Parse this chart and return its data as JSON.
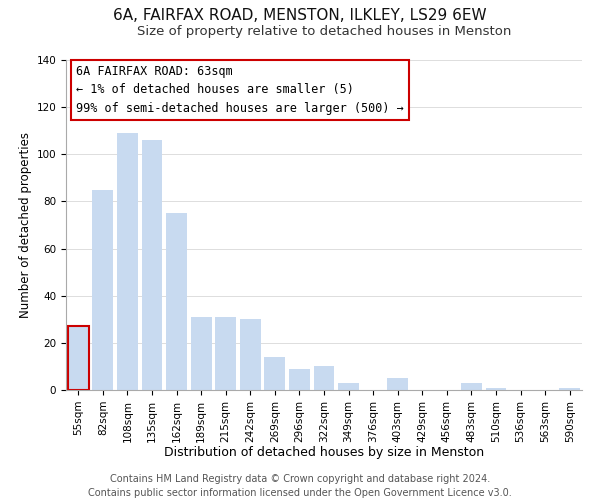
{
  "title": "6A, FAIRFAX ROAD, MENSTON, ILKLEY, LS29 6EW",
  "subtitle": "Size of property relative to detached houses in Menston",
  "xlabel": "Distribution of detached houses by size in Menston",
  "ylabel": "Number of detached properties",
  "categories": [
    "55sqm",
    "82sqm",
    "108sqm",
    "135sqm",
    "162sqm",
    "189sqm",
    "215sqm",
    "242sqm",
    "269sqm",
    "296sqm",
    "322sqm",
    "349sqm",
    "376sqm",
    "403sqm",
    "429sqm",
    "456sqm",
    "483sqm",
    "510sqm",
    "536sqm",
    "563sqm",
    "590sqm"
  ],
  "values": [
    27,
    85,
    109,
    106,
    75,
    31,
    31,
    30,
    14,
    9,
    10,
    3,
    0,
    5,
    0,
    0,
    3,
    1,
    0,
    0,
    1
  ],
  "bar_color": "#c8daf0",
  "highlight_bar_edge_color": "#cc0000",
  "highlight_index": 0,
  "ylim": [
    0,
    140
  ],
  "yticks": [
    0,
    20,
    40,
    60,
    80,
    100,
    120,
    140
  ],
  "annotation_title": "6A FAIRFAX ROAD: 63sqm",
  "annotation_line1": "← 1% of detached houses are smaller (5)",
  "annotation_line2": "99% of semi-detached houses are larger (500) →",
  "annotation_box_color": "#ffffff",
  "annotation_box_edge_color": "#cc0000",
  "footer_line1": "Contains HM Land Registry data © Crown copyright and database right 2024.",
  "footer_line2": "Contains public sector information licensed under the Open Government Licence v3.0.",
  "title_fontsize": 11,
  "subtitle_fontsize": 9.5,
  "xlabel_fontsize": 9,
  "ylabel_fontsize": 8.5,
  "tick_fontsize": 7.5,
  "annotation_fontsize": 8.5,
  "footer_fontsize": 7
}
